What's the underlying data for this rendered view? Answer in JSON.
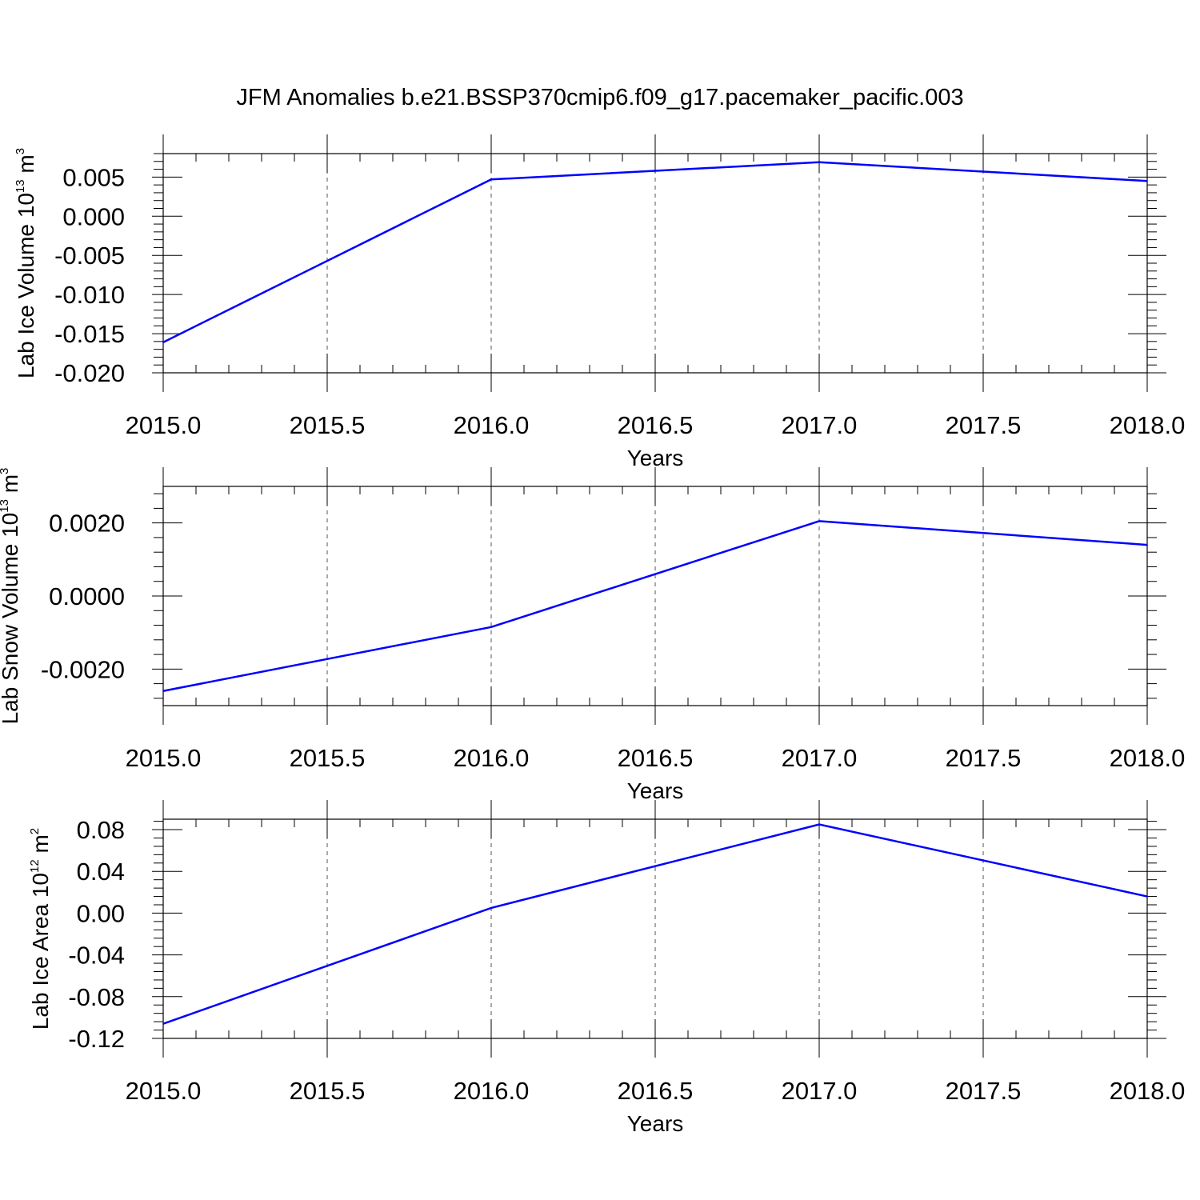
{
  "title": "JFM Anomalies b.e21.BSSP370cmip6.f09_g17.pacemaker_pacific.003",
  "chart_data": [
    {
      "type": "line",
      "ylabel": {
        "text": "Lab Ice Volume 10",
        "exp": "13",
        "unit": " m",
        "unit_exp": "3"
      },
      "xlabel": "Years",
      "x": [
        2015,
        2016,
        2017,
        2018
      ],
      "series": [
        {
          "values": [
            -0.0161,
            0.0047,
            0.0069,
            0.0045
          ],
          "color": "#0000ff"
        }
      ],
      "xlim": [
        2015,
        2018
      ],
      "ylim": [
        -0.02,
        0.008
      ],
      "yticks": [
        -0.02,
        -0.015,
        -0.01,
        -0.005,
        0.0,
        0.005
      ],
      "ytick_labels": [
        "-0.020",
        "-0.015",
        "-0.010",
        "-0.005",
        "0.000",
        "0.005"
      ],
      "xticks": [
        2015.0,
        2015.5,
        2016.0,
        2016.5,
        2017.0,
        2017.5,
        2018.0
      ],
      "xtick_labels": [
        "2015.0",
        "2015.5",
        "2016.0",
        "2016.5",
        "2017.0",
        "2017.5",
        "2018.0"
      ],
      "grid": "vertical dashed"
    },
    {
      "type": "line",
      "ylabel": {
        "text": "Lab Snow Volume 10",
        "exp": "13",
        "unit": " m",
        "unit_exp": "3"
      },
      "xlabel": "Years",
      "x": [
        2015,
        2016,
        2017,
        2018
      ],
      "series": [
        {
          "values": [
            -0.0026,
            -0.00085,
            0.00205,
            0.0014
          ],
          "color": "#0000ff"
        }
      ],
      "xlim": [
        2015,
        2018
      ],
      "ylim": [
        -0.003,
        0.003
      ],
      "yticks": [
        -0.002,
        0.0,
        0.002
      ],
      "ytick_labels": [
        "-0.0020",
        "0.0000",
        "0.0020"
      ],
      "xticks": [
        2015.0,
        2015.5,
        2016.0,
        2016.5,
        2017.0,
        2017.5,
        2018.0
      ],
      "xtick_labels": [
        "2015.0",
        "2015.5",
        "2016.0",
        "2016.5",
        "2017.0",
        "2017.5",
        "2018.0"
      ],
      "grid": "vertical dashed"
    },
    {
      "type": "line",
      "ylabel": {
        "text": "Lab Ice Area 10",
        "exp": "12",
        "unit": " m",
        "unit_exp": "2"
      },
      "xlabel": "Years",
      "x": [
        2015,
        2016,
        2017,
        2018
      ],
      "series": [
        {
          "values": [
            -0.106,
            0.005,
            0.085,
            0.016
          ],
          "color": "#0000ff"
        }
      ],
      "xlim": [
        2015,
        2018
      ],
      "ylim": [
        -0.12,
        0.09
      ],
      "yticks": [
        -0.12,
        -0.08,
        -0.04,
        0.0,
        0.04,
        0.08
      ],
      "ytick_labels": [
        "-0.12",
        "-0.08",
        "-0.04",
        "0.00",
        "0.04",
        "0.08"
      ],
      "xticks": [
        2015.0,
        2015.5,
        2016.0,
        2016.5,
        2017.0,
        2017.5,
        2018.0
      ],
      "xtick_labels": [
        "2015.0",
        "2015.5",
        "2016.0",
        "2016.5",
        "2017.0",
        "2017.5",
        "2018.0"
      ],
      "grid": "vertical dashed"
    }
  ]
}
